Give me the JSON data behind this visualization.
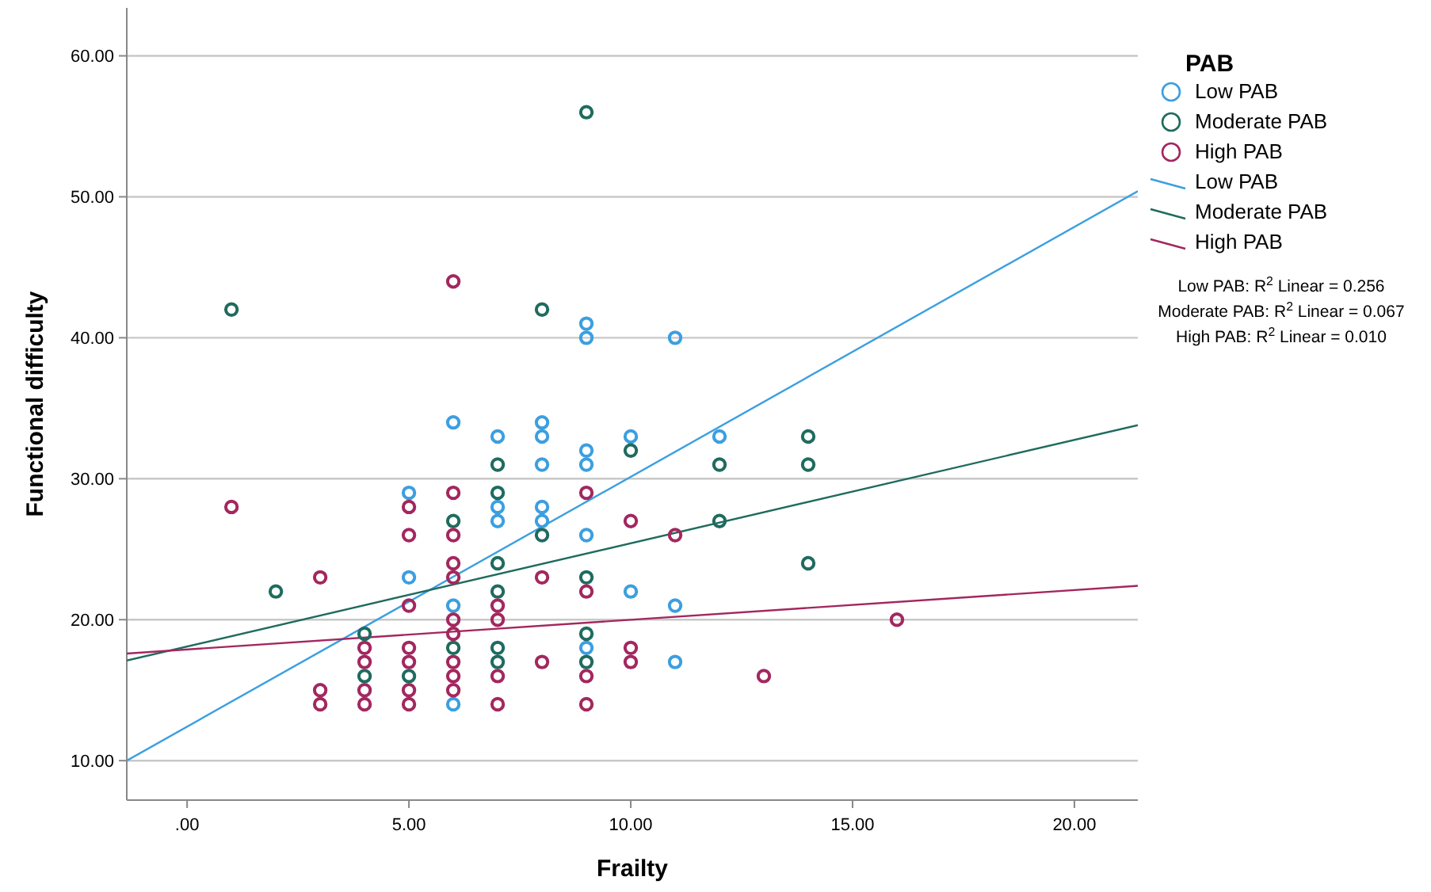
{
  "chart_data": {
    "type": "scatter",
    "xlabel": "Frailty",
    "ylabel": "Functional difficulty",
    "legend_title": "PAB",
    "legend": "right",
    "grid": "y",
    "marker": "circle",
    "xlim": [
      -1.36,
      21.43
    ],
    "ylim": [
      7.2,
      63.4
    ],
    "xticks": [
      {
        "value": 0,
        "label": ".00"
      },
      {
        "value": 5,
        "label": "5.00"
      },
      {
        "value": 10,
        "label": "10.00"
      },
      {
        "value": 15,
        "label": "15.00"
      },
      {
        "value": 20,
        "label": "20.00"
      }
    ],
    "yticks": [
      {
        "value": 10,
        "label": "10.00"
      },
      {
        "value": 20,
        "label": "20.00"
      },
      {
        "value": 30,
        "label": "30.00"
      },
      {
        "value": 40,
        "label": "40.00"
      },
      {
        "value": 50,
        "label": "50.00"
      },
      {
        "value": 60,
        "label": "60.00"
      }
    ],
    "series": [
      {
        "name": "Low PAB",
        "color": "#3b9fe0",
        "x": [
          5,
          5,
          6,
          6,
          6,
          7,
          7,
          7,
          8,
          8,
          8,
          8,
          8,
          9,
          9,
          9,
          9,
          9,
          9,
          10,
          10,
          11,
          11,
          11,
          12
        ],
        "values": [
          29,
          23,
          34,
          21,
          14,
          33,
          28,
          27,
          34,
          33,
          31,
          28,
          27,
          41,
          40,
          32,
          31,
          26,
          18,
          33,
          22,
          40,
          21,
          17,
          33
        ]
      },
      {
        "name": "Moderate PAB",
        "color": "#1f6b5f",
        "x": [
          1,
          2,
          4,
          4,
          5,
          6,
          6,
          7,
          7,
          7,
          7,
          7,
          7,
          8,
          8,
          9,
          9,
          9,
          9,
          10,
          12,
          12,
          14,
          14,
          14
        ],
        "values": [
          42,
          22,
          19,
          16,
          16,
          27,
          18,
          31,
          29,
          24,
          22,
          18,
          17,
          42,
          26,
          56,
          23,
          19,
          17,
          32,
          31,
          27,
          33,
          31,
          24
        ]
      },
      {
        "name": "High PAB",
        "color": "#a3275f",
        "x": [
          1,
          3,
          3,
          3,
          4,
          4,
          4,
          4,
          5,
          5,
          5,
          5,
          5,
          5,
          5,
          6,
          6,
          6,
          6,
          6,
          6,
          6,
          6,
          6,
          6,
          7,
          7,
          7,
          7,
          8,
          8,
          9,
          9,
          9,
          9,
          10,
          10,
          10,
          11,
          13,
          16
        ],
        "values": [
          28,
          23,
          15,
          14,
          18,
          17,
          15,
          14,
          28,
          26,
          21,
          18,
          17,
          15,
          14,
          44,
          29,
          26,
          24,
          23,
          20,
          19,
          17,
          16,
          15,
          21,
          20,
          16,
          14,
          23,
          17,
          29,
          22,
          16,
          14,
          27,
          18,
          17,
          26,
          16,
          20
        ]
      },
      {
        "name": "Low PAB",
        "type": "line",
        "marker": "none",
        "color": "#3b9fe0",
        "x": [
          -1.36,
          21.43
        ],
        "values": [
          10.0,
          50.4
        ]
      },
      {
        "name": "Moderate PAB",
        "type": "line",
        "marker": "none",
        "color": "#1f6b5f",
        "x": [
          -1.36,
          21.43
        ],
        "values": [
          17.1,
          33.8
        ]
      },
      {
        "name": "High PAB",
        "type": "line",
        "marker": "none",
        "color": "#a3275f",
        "x": [
          -1.36,
          21.43
        ],
        "values": [
          17.6,
          22.4
        ]
      }
    ],
    "annotations": [
      "Low PAB: R$^{2}$ Linear = 0.256",
      "Moderate PAB: R$^{2}$ Linear = 0.067",
      "High PAB: R$^{2}$ Linear = 0.010"
    ]
  }
}
